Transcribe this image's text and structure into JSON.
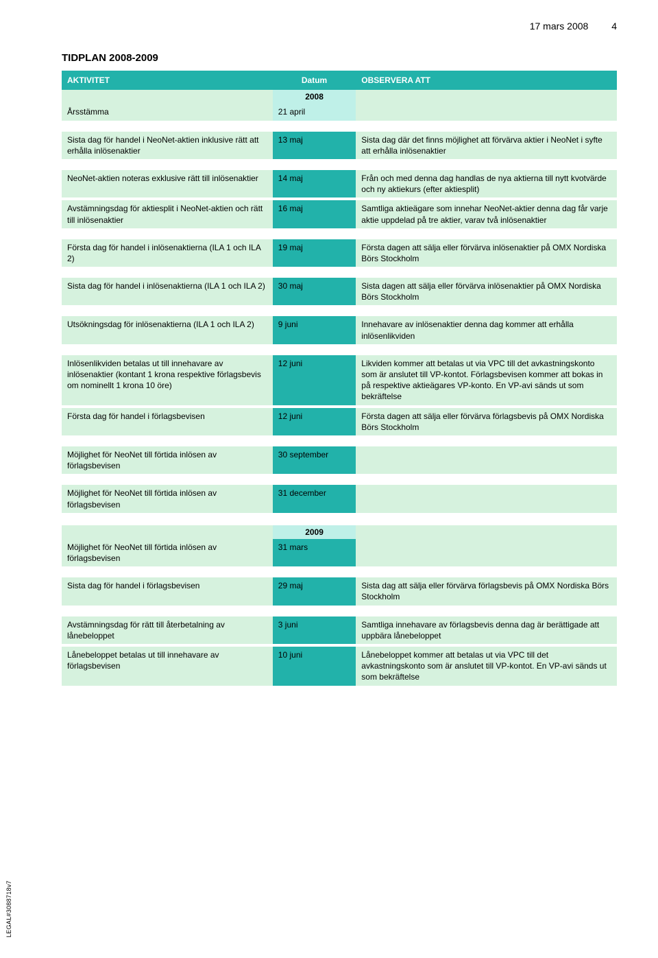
{
  "header": {
    "date": "17 mars 2008",
    "page": "4"
  },
  "title": "TIDPLAN 2008-2009",
  "columns": {
    "activity": "AKTIVITET",
    "date": "Datum",
    "observe": "OBSERVERA ATT"
  },
  "year_2008": "2008",
  "year_2009": "2009",
  "colors": {
    "header_bg": "#22b2aa",
    "year_cell_bg": "#bff0e8",
    "activity_bg": "#d6f2de",
    "date_cell_bg": "#22b2aa",
    "date_cell_alt_bg": "#bff0e8",
    "obs_bg": "#d6f2de",
    "header_text": "#ffffff",
    "body_text": "#000000"
  },
  "rows": [
    {
      "activity": "Årsstämma",
      "date": "21 april",
      "observe": "",
      "date_style": "alt"
    },
    {
      "activity": "Sista dag för handel i NeoNet-aktien inklusive rätt att erhålla inlösenaktier",
      "date": "13 maj",
      "observe": "Sista dag där det finns möjlighet att förvärva aktier i NeoNet i syfte att erhålla inlösenaktier",
      "date_style": "main"
    },
    {
      "activity": "NeoNet-aktien noteras exklusive rätt till inlösenaktier",
      "date": "14 maj",
      "observe": "Från och med denna dag handlas de nya aktierna till nytt kvotvärde och ny aktiekurs (efter aktiesplit)",
      "date_style": "main"
    },
    {
      "activity": "Avstämningsdag för aktiesplit i NeoNet-aktien och rätt till inlösenaktier",
      "date": "16 maj",
      "observe": "Samtliga aktieägare som innehar NeoNet-aktier denna dag får varje aktie uppdelad på tre aktier, varav två inlösenaktier",
      "date_style": "main"
    },
    {
      "activity": "Första dag för handel i inlösenaktierna (ILA 1 och ILA 2)",
      "date": "19 maj",
      "observe": "Första dagen att sälja eller förvärva inlösenaktier på OMX Nordiska Börs Stockholm",
      "date_style": "main"
    },
    {
      "activity": "Sista dag för handel i inlösenaktierna (ILA 1 och ILA 2)",
      "date": "30 maj",
      "observe": "Sista dagen att sälja eller förvärva inlösenaktier på OMX Nordiska Börs Stockholm",
      "date_style": "main"
    },
    {
      "activity": "Utsökningsdag för inlösenaktierna (ILA 1 och ILA 2)",
      "date": "9 juni",
      "observe": "Innehavare av inlösenaktier denna dag kommer att erhålla inlösenlikviden",
      "date_style": "main"
    },
    {
      "activity": "Inlösenlikviden betalas ut till innehavare av inlösenaktier (kontant 1 krona respektive förlagsbevis om nominellt 1 krona 10 öre)",
      "date": "12 juni",
      "observe": "Likviden kommer att betalas ut via VPC till det avkastningskonto som är anslutet till VP-kontot. Förlagsbevisen kommer att bokas in på respektive aktieägares VP-konto. En VP-avi sänds ut som bekräftelse",
      "date_style": "main"
    },
    {
      "activity": "Första dag för handel i förlagsbevisen",
      "date": "12 juni",
      "observe": "Första dagen att sälja eller förvärva förlagsbevis på OMX Nordiska Börs Stockholm",
      "date_style": "main"
    },
    {
      "activity": "Möjlighet för NeoNet till förtida inlösen av förlagsbevisen",
      "date": "30 september",
      "observe": "",
      "date_style": "main"
    },
    {
      "activity": "Möjlighet för NeoNet till förtida inlösen av förlagsbevisen",
      "date": "31 december",
      "observe": "",
      "date_style": "main"
    },
    {
      "activity": "Möjlighet för NeoNet till förtida inlösen av förlagsbevisen",
      "date": "31 mars",
      "observe": "",
      "date_style": "main"
    },
    {
      "activity": "Sista dag för handel i förlagsbevisen",
      "date": "29 maj",
      "observe": "Sista dag att sälja eller förvärva förlagsbevis på OMX Nordiska Börs Stockholm",
      "date_style": "main"
    },
    {
      "activity": "Avstämningsdag för rätt till återbetalning av lånebeloppet",
      "date": "3 juni",
      "observe": "Samtliga innehavare av förlagsbevis denna dag är berättigade att uppbära lånebeloppet",
      "date_style": "main"
    },
    {
      "activity": "Lånebeloppet betalas ut till innehavare av förlagsbevisen",
      "date": "10 juni",
      "observe": "Lånebeloppet kommer att betalas ut via VPC till det avkastningskonto som är anslutet till VP-kontot. En VP-avi sänds ut som bekräftelse",
      "date_style": "main"
    }
  ],
  "legal": "LEGAL#3088718v7"
}
